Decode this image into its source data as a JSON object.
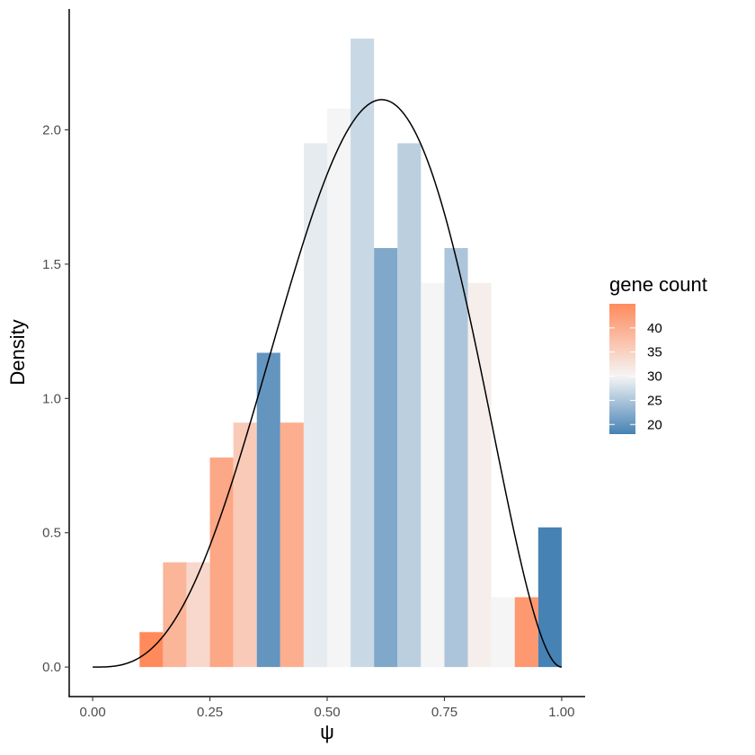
{
  "chart_data": {
    "type": "bar",
    "subtype": "histogram-with-density-curve",
    "xlabel": "ψ",
    "ylabel": "Density",
    "xlim": [
      -0.05,
      1.05
    ],
    "ylim": [
      -0.11,
      2.45
    ],
    "x_ticks": [
      0.0,
      0.25,
      0.5,
      0.75,
      1.0
    ],
    "x_tick_labels": [
      "0.00",
      "0.25",
      "0.50",
      "0.75",
      "1.00"
    ],
    "y_ticks": [
      0.0,
      0.5,
      1.0,
      1.5,
      2.0
    ],
    "y_tick_labels": [
      "0.0",
      "0.5",
      "1.0",
      "1.5",
      "2.0"
    ],
    "grid": false,
    "bin_width": 0.05,
    "bins": [
      {
        "x0": 0.1,
        "x1": 0.15,
        "density": 0.13,
        "gene_count": 45
      },
      {
        "x0": 0.15,
        "x1": 0.2,
        "density": 0.39,
        "gene_count": 39
      },
      {
        "x0": 0.2,
        "x1": 0.25,
        "density": 0.39,
        "gene_count": 34
      },
      {
        "x0": 0.25,
        "x1": 0.3,
        "density": 0.78,
        "gene_count": 41
      },
      {
        "x0": 0.3,
        "x1": 0.35,
        "density": 0.91,
        "gene_count": 36
      },
      {
        "x0": 0.35,
        "x1": 0.4,
        "density": 1.17,
        "gene_count": 20
      },
      {
        "x0": 0.4,
        "x1": 0.45,
        "density": 0.91,
        "gene_count": 40
      },
      {
        "x0": 0.45,
        "x1": 0.5,
        "density": 1.95,
        "gene_count": 29
      },
      {
        "x0": 0.5,
        "x1": 0.55,
        "density": 2.08,
        "gene_count": 30
      },
      {
        "x0": 0.55,
        "x1": 0.6,
        "density": 2.34,
        "gene_count": 27
      },
      {
        "x0": 0.6,
        "x1": 0.65,
        "density": 1.56,
        "gene_count": 22
      },
      {
        "x0": 0.65,
        "x1": 0.7,
        "density": 1.95,
        "gene_count": 26
      },
      {
        "x0": 0.7,
        "x1": 0.75,
        "density": 1.43,
        "gene_count": 30
      },
      {
        "x0": 0.75,
        "x1": 0.8,
        "density": 1.56,
        "gene_count": 25
      },
      {
        "x0": 0.8,
        "x1": 0.85,
        "density": 1.43,
        "gene_count": 31
      },
      {
        "x0": 0.85,
        "x1": 0.9,
        "density": 0.26,
        "gene_count": 30
      },
      {
        "x0": 0.9,
        "x1": 0.95,
        "density": 0.26,
        "gene_count": 43
      },
      {
        "x0": 0.95,
        "x1": 1.0,
        "density": 0.52,
        "gene_count": 18
      }
    ],
    "density_curve": {
      "distribution": "beta",
      "alpha": 4.18,
      "beta": 2.98,
      "x_range": [
        0.0,
        1.0
      ],
      "color": "#000000"
    },
    "legend": {
      "title": "gene count",
      "placement": "right",
      "labels": [
        "40",
        "35",
        "30",
        "25",
        "20"
      ],
      "values": [
        40,
        35,
        30,
        25,
        20
      ],
      "range": [
        18,
        45
      ],
      "low_color": "#4682b4",
      "mid_color": "#f5f5f5",
      "mid_value": 30,
      "high_color": "#ff8a5c"
    }
  }
}
